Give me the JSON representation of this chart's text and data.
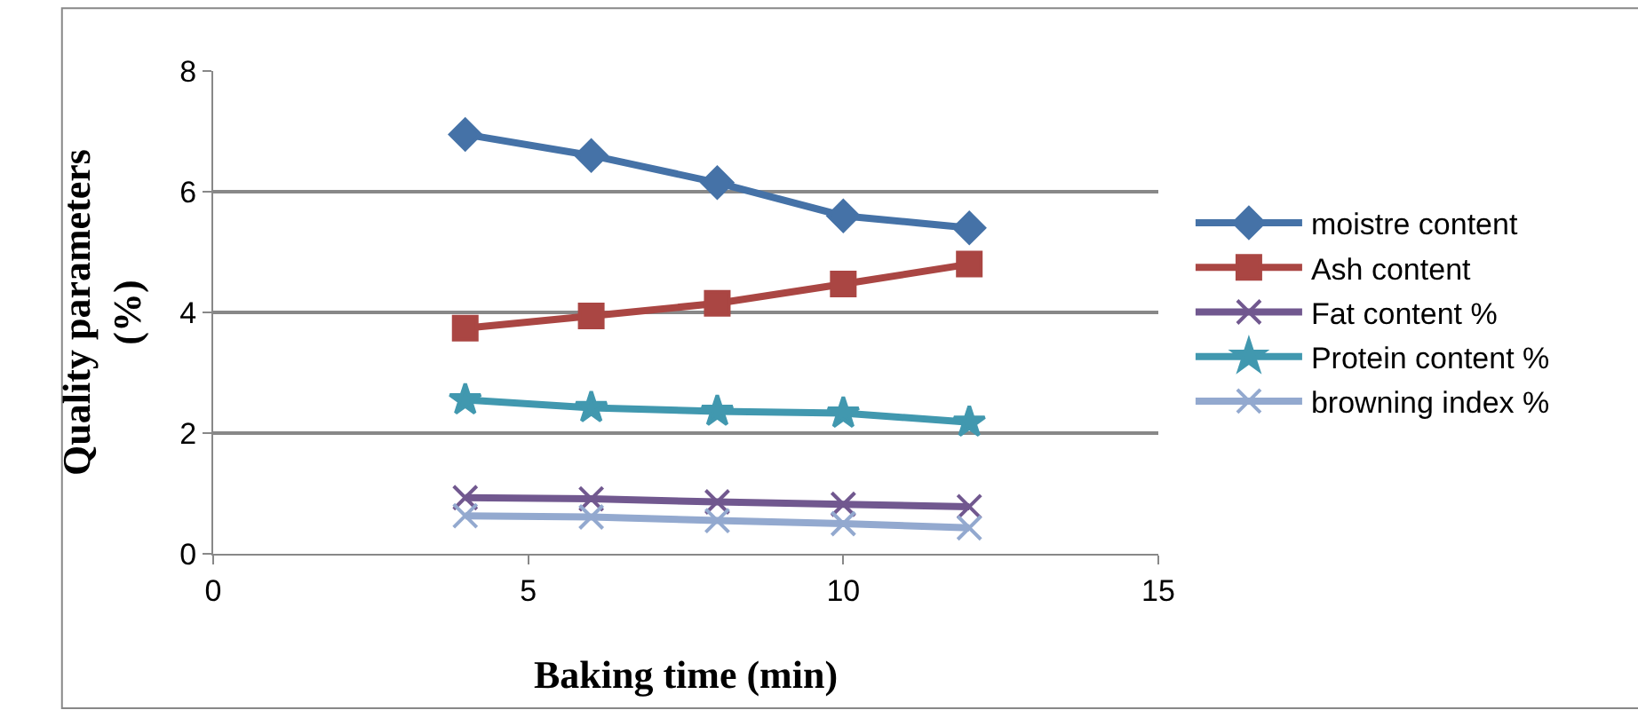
{
  "chart_data": {
    "type": "line",
    "xlabel": "Baking time (min)",
    "ylabel": "Quality parameters (%)",
    "x": [
      4,
      6,
      8,
      10,
      12
    ],
    "xlim": [
      0,
      15
    ],
    "xticks": [
      0,
      5,
      10,
      15
    ],
    "ylim": [
      0,
      8
    ],
    "yticks": [
      0,
      2,
      4,
      6,
      8
    ],
    "grid": "y",
    "legend": "right",
    "series": [
      {
        "name": "moistre content",
        "color": "#4572a7",
        "marker": "diamond",
        "values": [
          6.95,
          6.6,
          6.15,
          5.6,
          5.4
        ]
      },
      {
        "name": "Ash content",
        "color": "#aa4643",
        "marker": "square",
        "values": [
          3.74,
          3.94,
          4.15,
          4.47,
          4.8
        ]
      },
      {
        "name": "Fat content %",
        "color": "#71588f",
        "marker": "cross",
        "values": [
          0.93,
          0.91,
          0.86,
          0.82,
          0.78
        ]
      },
      {
        "name": "Protein content %",
        "color": "#4198af",
        "marker": "star",
        "values": [
          2.55,
          2.42,
          2.36,
          2.33,
          2.18
        ]
      },
      {
        "name": "browning index %",
        "color": "#93a9cf",
        "marker": "cross",
        "values": [
          0.63,
          0.61,
          0.55,
          0.5,
          0.43
        ]
      }
    ]
  }
}
